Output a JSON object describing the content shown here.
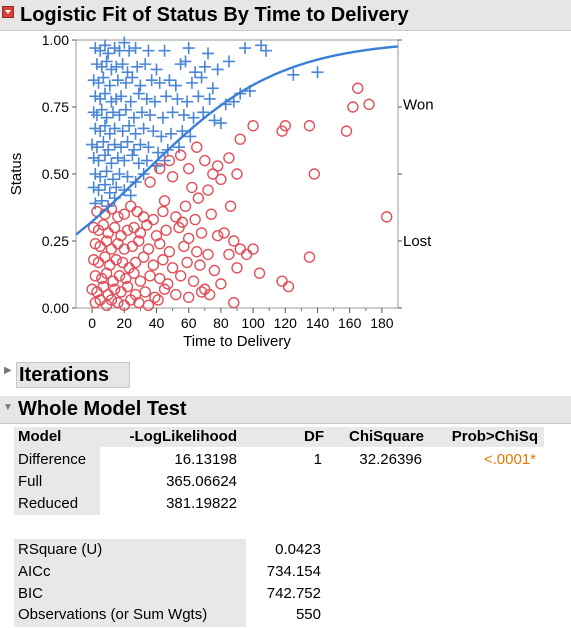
{
  "report": {
    "title": "Logistic Fit of Status By Time to Delivery"
  },
  "colors": {
    "won": "#4a86d6",
    "lost": "#e0505a",
    "curve": "#3b7fd8",
    "significant": "#e07a00"
  },
  "chart_data": {
    "type": "scatter",
    "xlabel": "Time to Delivery",
    "ylabel": "Status",
    "xlim": [
      -10,
      190
    ],
    "ylim": [
      0,
      1
    ],
    "x_ticks": [
      "0",
      "20",
      "40",
      "60",
      "80",
      "100",
      "120",
      "140",
      "160",
      "180"
    ],
    "y_ticks": [
      "0.00",
      "0.25",
      "0.50",
      "0.75",
      "1.00"
    ],
    "right_labels": [
      {
        "text": "Won",
        "y": 0.76
      },
      {
        "text": "Lost",
        "y": 0.25
      }
    ],
    "logistic_curve": {
      "intercept": -0.74,
      "slope": 0.0234
    },
    "series": [
      {
        "name": "Won",
        "marker": "plus",
        "points": [
          [
            2,
            0.97
          ],
          [
            5,
            0.96
          ],
          [
            8,
            0.98
          ],
          [
            10,
            0.95
          ],
          [
            14,
            0.97
          ],
          [
            17,
            0.96
          ],
          [
            20,
            0.99
          ],
          [
            23,
            0.96
          ],
          [
            27,
            0.97
          ],
          [
            35,
            0.96
          ],
          [
            45,
            0.96
          ],
          [
            60,
            0.97
          ],
          [
            72,
            0.95
          ],
          [
            95,
            0.97
          ],
          [
            105,
            0.98
          ],
          [
            108,
            0.96
          ],
          [
            3,
            0.91
          ],
          [
            6,
            0.9
          ],
          [
            9,
            0.92
          ],
          [
            12,
            0.89
          ],
          [
            15,
            0.9
          ],
          [
            19,
            0.91
          ],
          [
            22,
            0.88
          ],
          [
            28,
            0.9
          ],
          [
            33,
            0.91
          ],
          [
            40,
            0.89
          ],
          [
            55,
            0.91
          ],
          [
            58,
            0.92
          ],
          [
            64,
            0.88
          ],
          [
            70,
            0.9
          ],
          [
            78,
            0.89
          ],
          [
            85,
            0.92
          ],
          [
            125,
            0.87
          ],
          [
            1,
            0.85
          ],
          [
            4,
            0.84
          ],
          [
            7,
            0.86
          ],
          [
            11,
            0.83
          ],
          [
            16,
            0.85
          ],
          [
            21,
            0.84
          ],
          [
            25,
            0.86
          ],
          [
            30,
            0.83
          ],
          [
            37,
            0.85
          ],
          [
            42,
            0.84
          ],
          [
            48,
            0.85
          ],
          [
            52,
            0.83
          ],
          [
            62,
            0.84
          ],
          [
            68,
            0.86
          ],
          [
            75,
            0.82
          ],
          [
            92,
            0.8
          ],
          [
            98,
            0.81
          ],
          [
            2,
            0.79
          ],
          [
            5,
            0.78
          ],
          [
            8,
            0.8
          ],
          [
            12,
            0.77
          ],
          [
            15,
            0.78
          ],
          [
            18,
            0.79
          ],
          [
            24,
            0.77
          ],
          [
            29,
            0.8
          ],
          [
            34,
            0.78
          ],
          [
            39,
            0.77
          ],
          [
            46,
            0.79
          ],
          [
            53,
            0.78
          ],
          [
            59,
            0.77
          ],
          [
            66,
            0.79
          ],
          [
            73,
            0.78
          ],
          [
            83,
            0.76
          ],
          [
            88,
            0.77
          ],
          [
            140,
            0.88
          ],
          [
            1,
            0.73
          ],
          [
            3,
            0.72
          ],
          [
            6,
            0.74
          ],
          [
            9,
            0.71
          ],
          [
            13,
            0.73
          ],
          [
            17,
            0.72
          ],
          [
            21,
            0.74
          ],
          [
            26,
            0.71
          ],
          [
            31,
            0.73
          ],
          [
            36,
            0.72
          ],
          [
            44,
            0.71
          ],
          [
            50,
            0.73
          ],
          [
            57,
            0.72
          ],
          [
            63,
            0.71
          ],
          [
            69,
            0.73
          ],
          [
            76,
            0.7
          ],
          [
            80,
            0.69
          ],
          [
            2,
            0.67
          ],
          [
            5,
            0.66
          ],
          [
            8,
            0.68
          ],
          [
            11,
            0.65
          ],
          [
            14,
            0.67
          ],
          [
            19,
            0.66
          ],
          [
            23,
            0.68
          ],
          [
            27,
            0.65
          ],
          [
            32,
            0.67
          ],
          [
            38,
            0.66
          ],
          [
            43,
            0.64
          ],
          [
            49,
            0.65
          ],
          [
            56,
            0.66
          ],
          [
            61,
            0.64
          ],
          [
            0,
            0.61
          ],
          [
            3,
            0.6
          ],
          [
            7,
            0.62
          ],
          [
            10,
            0.59
          ],
          [
            14,
            0.61
          ],
          [
            18,
            0.6
          ],
          [
            22,
            0.62
          ],
          [
            26,
            0.59
          ],
          [
            30,
            0.61
          ],
          [
            35,
            0.6
          ],
          [
            41,
            0.58
          ],
          [
            47,
            0.59
          ],
          [
            54,
            0.6
          ],
          [
            1,
            0.56
          ],
          [
            4,
            0.55
          ],
          [
            8,
            0.57
          ],
          [
            12,
            0.54
          ],
          [
            16,
            0.56
          ],
          [
            20,
            0.55
          ],
          [
            25,
            0.57
          ],
          [
            29,
            0.54
          ],
          [
            34,
            0.55
          ],
          [
            40,
            0.53
          ],
          [
            45,
            0.55
          ],
          [
            2,
            0.5
          ],
          [
            5,
            0.49
          ],
          [
            9,
            0.51
          ],
          [
            13,
            0.48
          ],
          [
            17,
            0.5
          ],
          [
            22,
            0.49
          ],
          [
            27,
            0.47
          ],
          [
            32,
            0.5
          ],
          [
            1,
            0.45
          ],
          [
            4,
            0.44
          ],
          [
            8,
            0.46
          ],
          [
            11,
            0.43
          ],
          [
            15,
            0.45
          ],
          [
            20,
            0.44
          ],
          [
            24,
            0.42
          ],
          [
            2,
            0.39
          ],
          [
            6,
            0.4
          ],
          [
            10,
            0.38
          ],
          [
            14,
            0.41
          ]
        ]
      },
      {
        "name": "Lost",
        "marker": "circle",
        "points": [
          [
            65,
            0.6
          ],
          [
            92,
            0.63
          ],
          [
            100,
            0.68
          ],
          [
            118,
            0.66
          ],
          [
            120,
            0.68
          ],
          [
            135,
            0.68
          ],
          [
            158,
            0.66
          ],
          [
            165,
            0.82
          ],
          [
            162,
            0.75
          ],
          [
            172,
            0.76
          ],
          [
            138,
            0.5
          ],
          [
            183,
            0.34
          ],
          [
            85,
            0.56
          ],
          [
            78,
            0.53
          ],
          [
            90,
            0.5
          ],
          [
            80,
            0.48
          ],
          [
            48,
            0.55
          ],
          [
            55,
            0.57
          ],
          [
            60,
            0.52
          ],
          [
            70,
            0.55
          ],
          [
            75,
            0.5
          ],
          [
            42,
            0.52
          ],
          [
            50,
            0.49
          ],
          [
            36,
            0.47
          ],
          [
            62,
            0.45
          ],
          [
            72,
            0.44
          ],
          [
            86,
            0.38
          ],
          [
            66,
            0.41
          ],
          [
            58,
            0.38
          ],
          [
            45,
            0.4
          ],
          [
            3,
            0.36
          ],
          [
            8,
            0.35
          ],
          [
            12,
            0.37
          ],
          [
            16,
            0.34
          ],
          [
            20,
            0.35
          ],
          [
            24,
            0.38
          ],
          [
            28,
            0.36
          ],
          [
            32,
            0.34
          ],
          [
            38,
            0.33
          ],
          [
            44,
            0.36
          ],
          [
            52,
            0.34
          ],
          [
            56,
            0.32
          ],
          [
            64,
            0.33
          ],
          [
            74,
            0.35
          ],
          [
            82,
            0.28
          ],
          [
            88,
            0.25
          ],
          [
            1,
            0.3
          ],
          [
            4,
            0.29
          ],
          [
            7,
            0.31
          ],
          [
            10,
            0.28
          ],
          [
            14,
            0.3
          ],
          [
            18,
            0.27
          ],
          [
            22,
            0.29
          ],
          [
            26,
            0.3
          ],
          [
            30,
            0.28
          ],
          [
            34,
            0.31
          ],
          [
            40,
            0.27
          ],
          [
            46,
            0.29
          ],
          [
            54,
            0.3
          ],
          [
            60,
            0.26
          ],
          [
            68,
            0.28
          ],
          [
            78,
            0.27
          ],
          [
            92,
            0.22
          ],
          [
            2,
            0.24
          ],
          [
            5,
            0.23
          ],
          [
            9,
            0.25
          ],
          [
            12,
            0.22
          ],
          [
            16,
            0.24
          ],
          [
            20,
            0.22
          ],
          [
            25,
            0.23
          ],
          [
            29,
            0.25
          ],
          [
            35,
            0.22
          ],
          [
            42,
            0.24
          ],
          [
            48,
            0.21
          ],
          [
            57,
            0.23
          ],
          [
            65,
            0.21
          ],
          [
            72,
            0.2
          ],
          [
            85,
            0.2
          ],
          [
            96,
            0.2
          ],
          [
            100,
            0.22
          ],
          [
            135,
            0.19
          ],
          [
            1,
            0.18
          ],
          [
            4,
            0.17
          ],
          [
            8,
            0.19
          ],
          [
            11,
            0.16
          ],
          [
            15,
            0.18
          ],
          [
            19,
            0.17
          ],
          [
            23,
            0.15
          ],
          [
            27,
            0.17
          ],
          [
            32,
            0.19
          ],
          [
            38,
            0.16
          ],
          [
            44,
            0.18
          ],
          [
            50,
            0.15
          ],
          [
            59,
            0.17
          ],
          [
            67,
            0.16
          ],
          [
            76,
            0.14
          ],
          [
            90,
            0.15
          ],
          [
            104,
            0.13
          ],
          [
            2,
            0.12
          ],
          [
            6,
            0.11
          ],
          [
            9,
            0.13
          ],
          [
            13,
            0.1
          ],
          [
            17,
            0.12
          ],
          [
            21,
            0.11
          ],
          [
            26,
            0.13
          ],
          [
            30,
            0.1
          ],
          [
            36,
            0.12
          ],
          [
            42,
            0.11
          ],
          [
            47,
            0.09
          ],
          [
            55,
            0.12
          ],
          [
            63,
            0.1
          ],
          [
            70,
            0.07
          ],
          [
            80,
            0.09
          ],
          [
            118,
            0.1
          ],
          [
            122,
            0.08
          ],
          [
            0,
            0.07
          ],
          [
            3,
            0.06
          ],
          [
            7,
            0.08
          ],
          [
            10,
            0.05
          ],
          [
            14,
            0.07
          ],
          [
            18,
            0.06
          ],
          [
            22,
            0.08
          ],
          [
            27,
            0.05
          ],
          [
            33,
            0.06
          ],
          [
            39,
            0.04
          ],
          [
            45,
            0.07
          ],
          [
            52,
            0.05
          ],
          [
            60,
            0.04
          ],
          [
            68,
            0.06
          ],
          [
            73,
            0.05
          ],
          [
            88,
            0.02
          ],
          [
            2,
            0.02
          ],
          [
            5,
            0.03
          ],
          [
            9,
            0.01
          ],
          [
            12,
            0.03
          ],
          [
            16,
            0.02
          ],
          [
            20,
            0.01
          ],
          [
            24,
            0.03
          ],
          [
            29,
            0.02
          ],
          [
            35,
            0.01
          ],
          [
            41,
            0.03
          ]
        ]
      }
    ]
  },
  "iterations": {
    "title": "Iterations"
  },
  "whole_model_test": {
    "title": "Whole Model Test",
    "columns": [
      "Model",
      "-LogLikelihood",
      "DF",
      "ChiSquare",
      "Prob>ChiSq"
    ],
    "rows": [
      {
        "model": "Difference",
        "loglik": "16.13198",
        "df": "1",
        "chisq": "32.26396",
        "prob": "<.0001*"
      },
      {
        "model": "Full",
        "loglik": "365.06624",
        "df": "",
        "chisq": "",
        "prob": ""
      },
      {
        "model": "Reduced",
        "loglik": "381.19822",
        "df": "",
        "chisq": "",
        "prob": ""
      }
    ],
    "fit_stats": [
      {
        "label": "RSquare (U)",
        "value": "0.0423"
      },
      {
        "label": "AICc",
        "value": "734.154"
      },
      {
        "label": "BIC",
        "value": "742.752"
      },
      {
        "label": "Observations (or Sum Wgts)",
        "value": "550"
      }
    ]
  }
}
